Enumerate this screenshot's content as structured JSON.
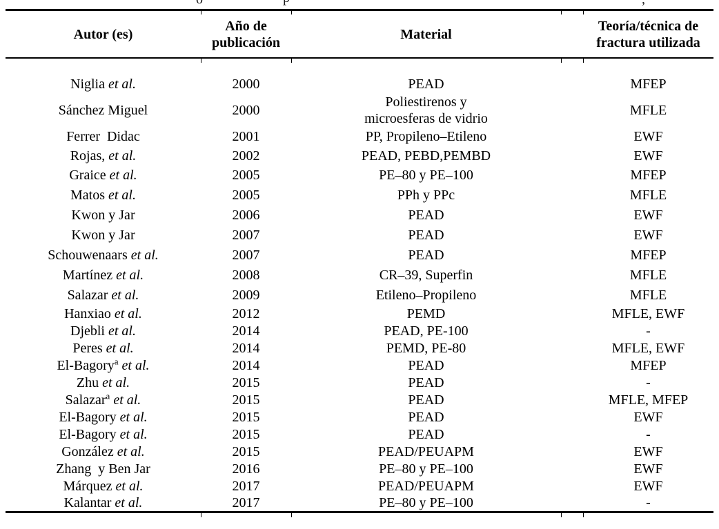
{
  "caption_cutoff_fragments": [
    {
      "glyph": "o"
    },
    {
      "glyph": "p"
    },
    {
      "glyph": ","
    }
  ],
  "table": {
    "headers": [
      {
        "label": "Autor (es)"
      },
      {
        "label": "Año de\npublicación"
      },
      {
        "label": "Material"
      },
      {
        "label": ""
      },
      {
        "label": "Teoría/técnica de\nfractura utilizada"
      }
    ],
    "rows": [
      {
        "name": "Niglia",
        "etal": "et al.",
        "year": "2000",
        "material": "PEAD",
        "theory": "MFEP"
      },
      {
        "name": "Sánchez Miguel",
        "year": "2000",
        "material": "Poliestirenos y",
        "material2": "microesferas de vidrio",
        "theory": "MFLE"
      },
      {
        "name": "Ferrer  Didac",
        "year": "2001",
        "material": "PP, Propileno–Etileno",
        "theory": "EWF"
      },
      {
        "name": "Rojas,",
        "etal": "et al.",
        "year": "2002",
        "material": "PEAD, PEBD,PEMBD",
        "theory": "EWF"
      },
      {
        "name": "Graice",
        "etal": "et al.",
        "year": "2005",
        "material": "PE–80 y PE–100",
        "theory": "MFEP"
      },
      {
        "name": "Matos",
        "etal": "et al.",
        "year": "2005",
        "material": "PPh y PPc",
        "theory": "MFLE"
      },
      {
        "name": "Kwon y Jar",
        "year": "2006",
        "material": "PEAD",
        "theory": "EWF"
      },
      {
        "name": "Kwon y Jar",
        "year": "2007",
        "material": "PEAD",
        "theory": "EWF"
      },
      {
        "name": "Schouwenaars",
        "etal": "et al.",
        "year": "2007",
        "material": "PEAD",
        "theory": "MFEP"
      },
      {
        "name": "Martínez",
        "etal": "et al.",
        "year": "2008",
        "material": "CR–39, Superfin",
        "theory": "MFLE"
      },
      {
        "name": "Salazar",
        "etal": "et al.",
        "year": "2009",
        "material": "Etileno–Propileno",
        "theory": "MFLE"
      },
      {
        "name": "Hanxiao",
        "etal": "et al.",
        "year": "2012",
        "material": "PEMD",
        "theory": "MFLE, EWF"
      },
      {
        "name": "Djebli",
        "etal": "et al.",
        "year": "2014",
        "material": "PEAD, PE-100",
        "theory": "-"
      },
      {
        "name": "Peres",
        "etal": "et al.",
        "year": "2014",
        "material": "PEMD, PE-80",
        "theory": "MFLE, EWF"
      },
      {
        "name": "El-Bagory",
        "sup": "a",
        "etal": "et al.",
        "year": "2014",
        "material": "PEAD",
        "theory": "MFEP"
      },
      {
        "name": "Zhu",
        "etal": "et al.",
        "year": "2015",
        "material": "PEAD",
        "theory": "-"
      },
      {
        "name": "Salazar",
        "sup": "a",
        "etal": "et al.",
        "year": "2015",
        "material": "PEAD",
        "theory": "MFLE, MFEP"
      },
      {
        "name": "El-Bagory",
        "etal": "et al.",
        "year": "2015",
        "material": "PEAD",
        "theory": "EWF"
      },
      {
        "name": "El-Bagory",
        "etal": "et al.",
        "year": "2015",
        "material": "PEAD",
        "theory": "-"
      },
      {
        "name": "González",
        "etal": "et al.",
        "year": "2015",
        "material": "PEAD/PEUAPM",
        "theory": "EWF"
      },
      {
        "name": "Zhang  y Ben Jar",
        "year": "2016",
        "material": "PE–80 y PE–100",
        "theory": "EWF"
      },
      {
        "name": "Márquez",
        "etal": "et al.",
        "year": "2017",
        "material": "PEAD/PEUAPM",
        "theory": "EWF"
      },
      {
        "name": "Kalantar",
        "etal": "et al.",
        "year": "2017",
        "material": "PE–80 y PE–100",
        "theory": "-"
      }
    ]
  }
}
